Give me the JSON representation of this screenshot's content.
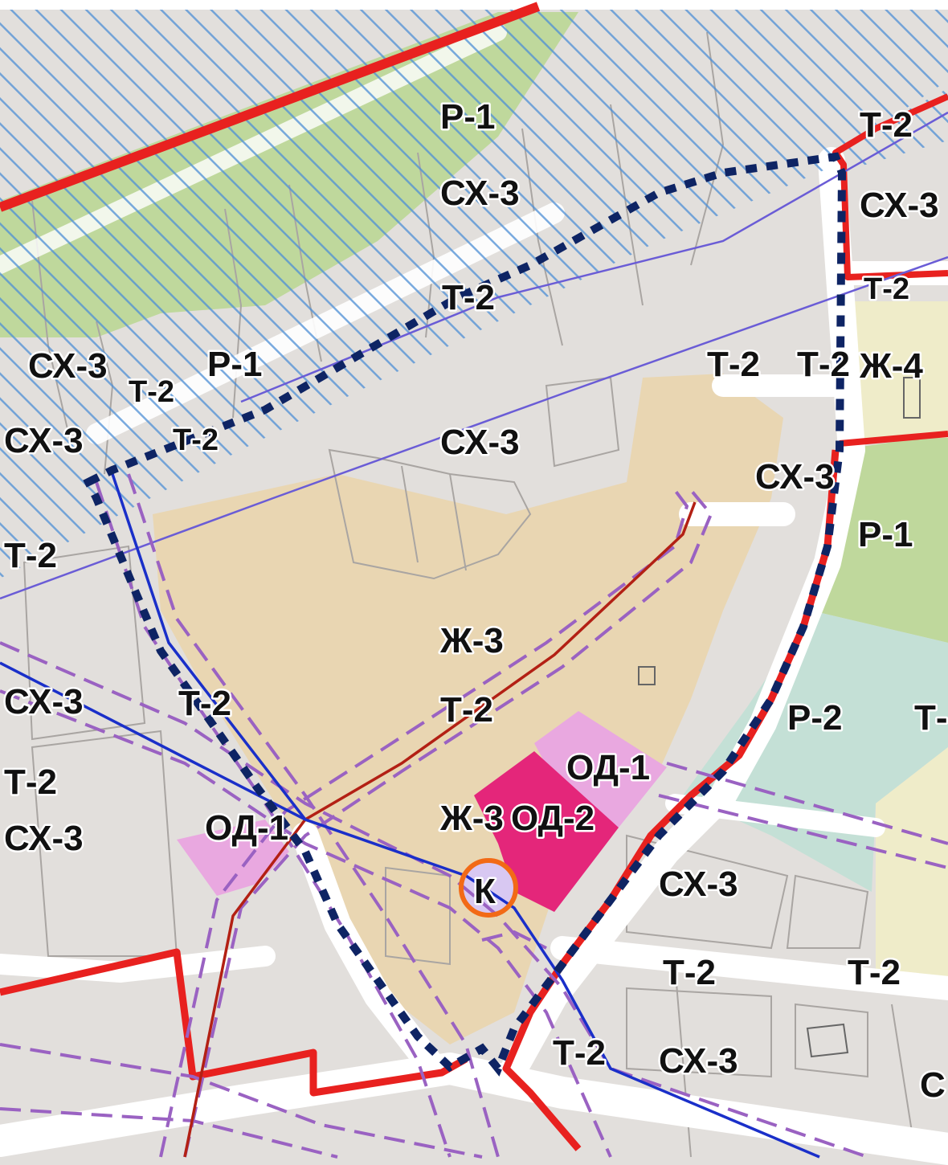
{
  "map": {
    "colors": {
      "background": "#e2dfdc",
      "parcel_line": "#a9a5a2",
      "zone_residential": "#e9d6b2",
      "zone_recreation_green": "#bfd89c",
      "zone_recreation_p2": "#c4e0d6",
      "zone_public_od1": "#e9a8e0",
      "zone_public_od2": "#e4267a",
      "zone_k": "#d8c8f2",
      "zone_residential_zh4": "#efecc9",
      "flood_hatch": "#4d8fd6",
      "red_boundary": "#e8211f",
      "project_boundary_dotted": "#0e2464",
      "blue_line": "#1a2fc9",
      "violet_line": "#6a5cd6",
      "dashed_buffer": "#9a62c2",
      "pipeline_red": "#b32014",
      "k_circle": "#f26a16",
      "roads": "#ffffff"
    },
    "zone_labels": {
      "r1_top": "Р-1",
      "skh3_top": "СХ-3",
      "t2_top_mid": "Т-2",
      "t2_top_right": "Т-2",
      "skh3_top_right": "СХ-3",
      "t2_right_1": "Т-2",
      "skh3_left_1": "СХ-3",
      "t2_left_1": "Т-2",
      "r1_left": "Р-1",
      "skh3_left_2": "СХ-3",
      "t2_left_2": "Т-2",
      "t2_center_right": "Т-2",
      "t2_right_2": "Т-2",
      "zh4_right": "Ж-4",
      "skh3_center": "СХ-3",
      "skh3_center_right": "СХ-3",
      "r1_right": "Р-1",
      "t2_left_3": "Т-2",
      "zh3_center": "Ж-3",
      "skh3_left_3": "СХ-3",
      "t2_left_4": "Т-2",
      "t2_center": "Т-2",
      "r2_right": "Р-2",
      "t_right_edge": "Т-",
      "od1_center": "ОД-1",
      "t2_left_5": "Т-2",
      "skh3_left_4": "СХ-3",
      "od1_left": "ОД-1",
      "zh3_lower": "Ж-3",
      "od2_center": "ОД-2",
      "k_center": "К",
      "skh3_lower_right": "СХ-3",
      "t2_lower_1": "Т-2",
      "t2_lower_2": "Т-2",
      "t2_bottom": "Т-2",
      "skh3_bottom": "СХ-3",
      "c_right_edge": "С"
    }
  }
}
